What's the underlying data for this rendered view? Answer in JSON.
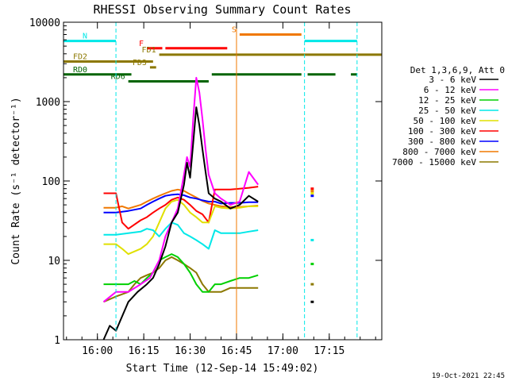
{
  "chart_data": {
    "type": "line",
    "title": "RHESSI Observing Summary Count Rates",
    "xlabel": "Start Time (12-Sep-14 15:49:02)",
    "ylabel": "Count Rate (s⁻¹ detector⁻¹)",
    "yscale": "log",
    "ylim": [
      1,
      10000
    ],
    "xlim": [
      "15:49:02",
      "17:32:00"
    ],
    "x_ticks": [
      "16:00",
      "16:15",
      "16:30",
      "16:45",
      "17:00",
      "17:15"
    ],
    "y_ticks": [
      "1",
      "10",
      "100",
      "1000",
      "10000"
    ],
    "legend_title": "Det 1,3,6,9, Att 0",
    "legend_position": "right",
    "timestamp": "19-Oct-2021 22:45",
    "flags": [
      {
        "label": "N",
        "color": "#00e8e8",
        "y": 5800,
        "segments": [
          [
            "15:49",
            "16:06"
          ],
          [
            "17:07",
            "17:24"
          ]
        ]
      },
      {
        "label": "S",
        "color": "#f07800",
        "y": 7000,
        "segments": [
          [
            "16:46",
            "17:06"
          ]
        ]
      },
      {
        "label": "F",
        "color": "#ff0000",
        "y": 4700,
        "segments": [
          [
            "16:16",
            "16:21"
          ],
          [
            "16:22",
            "16:42"
          ]
        ]
      },
      {
        "label": "FD1",
        "color": "#8c7800",
        "y": 3900,
        "segments": [
          [
            "16:20",
            "17:32"
          ]
        ]
      },
      {
        "label": "FD2",
        "color": "#8c7800",
        "y": 3200,
        "segments": [
          [
            "15:49",
            "16:18"
          ]
        ]
      },
      {
        "label": "FD3",
        "color": "#8c7800",
        "y": 2700,
        "segments": [
          [
            "16:17",
            "16:19"
          ]
        ]
      },
      {
        "label": "RD0",
        "color": "#006400",
        "y": 2200,
        "segments": [
          [
            "15:49",
            "16:11"
          ],
          [
            "16:37",
            "17:06"
          ],
          [
            "17:08",
            "17:17"
          ],
          [
            "17:22",
            "17:24"
          ]
        ]
      },
      {
        "label": "RD6",
        "color": "#006400",
        "y": 1800,
        "segments": [
          [
            "16:10",
            "16:36"
          ]
        ]
      }
    ],
    "markers": [
      {
        "time": "16:06",
        "color": "#00e8e8",
        "style": "dashed"
      },
      {
        "time": "16:45",
        "color": "#f07800",
        "style": "solid"
      },
      {
        "time": "17:07",
        "color": "#00e8e8",
        "style": "dashed"
      },
      {
        "time": "17:24",
        "color": "#00e8e8",
        "style": "dashed"
      }
    ],
    "series": [
      {
        "name": "3 - 6 keV",
        "color": "#000000",
        "points": [
          [
            "16:02",
            1
          ],
          [
            "16:04",
            1.5
          ],
          [
            "16:06",
            1.3
          ],
          [
            "16:10",
            3
          ],
          [
            "16:13",
            4
          ],
          [
            "16:16",
            5
          ],
          [
            "16:18",
            6
          ],
          [
            "16:20",
            9
          ],
          [
            "16:22",
            15
          ],
          [
            "16:24",
            30
          ],
          [
            "16:26",
            40
          ],
          [
            "16:28",
            90
          ],
          [
            "16:29",
            170
          ],
          [
            "16:30",
            110
          ],
          [
            "16:31",
            300
          ],
          [
            "16:32",
            850
          ],
          [
            "16:33",
            500
          ],
          [
            "16:34",
            250
          ],
          [
            "16:35",
            130
          ],
          [
            "16:36",
            70
          ],
          [
            "16:38",
            60
          ],
          [
            "16:40",
            55
          ],
          [
            "16:43",
            45
          ],
          [
            "16:46",
            50
          ],
          [
            "16:49",
            65
          ],
          [
            "16:52",
            55
          ]
        ]
      },
      {
        "name": "6 - 12 keV",
        "color": "#ff00ff",
        "points": [
          [
            "16:02",
            3
          ],
          [
            "16:06",
            4
          ],
          [
            "16:10",
            4
          ],
          [
            "16:14",
            5
          ],
          [
            "16:17",
            6
          ],
          [
            "16:20",
            10
          ],
          [
            "16:22",
            20
          ],
          [
            "16:24",
            30
          ],
          [
            "16:26",
            45
          ],
          [
            "16:28",
            120
          ],
          [
            "16:29",
            200
          ],
          [
            "16:30",
            150
          ],
          [
            "16:31",
            600
          ],
          [
            "16:32",
            2000
          ],
          [
            "16:33",
            1300
          ],
          [
            "16:34",
            600
          ],
          [
            "16:35",
            250
          ],
          [
            "16:36",
            120
          ],
          [
            "16:38",
            70
          ],
          [
            "16:40",
            60
          ],
          [
            "16:43",
            50
          ],
          [
            "16:46",
            55
          ],
          [
            "16:49",
            130
          ],
          [
            "16:52",
            90
          ]
        ]
      },
      {
        "name": "12 - 25 keV",
        "color": "#00d000",
        "points": [
          [
            "16:02",
            5
          ],
          [
            "16:06",
            5
          ],
          [
            "16:10",
            5
          ],
          [
            "16:12",
            5.5
          ],
          [
            "16:14",
            5
          ],
          [
            "16:16",
            6
          ],
          [
            "16:18",
            7
          ],
          [
            "16:20",
            10
          ],
          [
            "16:22",
            11
          ],
          [
            "16:24",
            12
          ],
          [
            "16:26",
            11
          ],
          [
            "16:28",
            9
          ],
          [
            "16:30",
            7
          ],
          [
            "16:32",
            5
          ],
          [
            "16:34",
            4
          ],
          [
            "16:36",
            4
          ],
          [
            "16:38",
            5
          ],
          [
            "16:40",
            5
          ],
          [
            "16:43",
            5.5
          ],
          [
            "16:46",
            6
          ],
          [
            "16:49",
            6
          ],
          [
            "16:52",
            6.5
          ]
        ]
      },
      {
        "name": "25 - 50 keV",
        "color": "#00e8e8",
        "points": [
          [
            "16:02",
            21
          ],
          [
            "16:04",
            21
          ],
          [
            "16:06",
            21
          ],
          [
            "16:10",
            22
          ],
          [
            "16:14",
            23
          ],
          [
            "16:16",
            25
          ],
          [
            "16:18",
            24
          ],
          [
            "16:20",
            20
          ],
          [
            "16:22",
            25
          ],
          [
            "16:24",
            30
          ],
          [
            "16:26",
            28
          ],
          [
            "16:28",
            22
          ],
          [
            "16:30",
            20
          ],
          [
            "16:32",
            18
          ],
          [
            "16:34",
            16
          ],
          [
            "16:36",
            14
          ],
          [
            "16:38",
            24
          ],
          [
            "16:40",
            22
          ],
          [
            "16:43",
            22
          ],
          [
            "16:46",
            22
          ],
          [
            "16:49",
            23
          ],
          [
            "16:52",
            24
          ]
        ]
      },
      {
        "name": "50 - 100 keV",
        "color": "#e0e000",
        "points": [
          [
            "16:02",
            16
          ],
          [
            "16:06",
            16
          ],
          [
            "16:08",
            14
          ],
          [
            "16:10",
            12
          ],
          [
            "16:14",
            14
          ],
          [
            "16:16",
            16
          ],
          [
            "16:18",
            20
          ],
          [
            "16:20",
            30
          ],
          [
            "16:22",
            45
          ],
          [
            "16:24",
            55
          ],
          [
            "16:26",
            58
          ],
          [
            "16:28",
            50
          ],
          [
            "16:30",
            40
          ],
          [
            "16:32",
            35
          ],
          [
            "16:34",
            30
          ],
          [
            "16:36",
            30
          ],
          [
            "16:38",
            48
          ],
          [
            "16:40",
            46
          ],
          [
            "16:43",
            45
          ],
          [
            "16:46",
            46
          ],
          [
            "16:49",
            48
          ],
          [
            "16:52",
            48
          ]
        ]
      },
      {
        "name": "100 - 300 keV",
        "color": "#ff0000",
        "points": [
          [
            "16:02",
            70
          ],
          [
            "16:06",
            70
          ],
          [
            "16:08",
            30
          ],
          [
            "16:10",
            25
          ],
          [
            "16:14",
            32
          ],
          [
            "16:16",
            35
          ],
          [
            "16:18",
            40
          ],
          [
            "16:20",
            45
          ],
          [
            "16:22",
            50
          ],
          [
            "16:24",
            58
          ],
          [
            "16:26",
            62
          ],
          [
            "16:28",
            58
          ],
          [
            "16:30",
            50
          ],
          [
            "16:32",
            42
          ],
          [
            "16:34",
            38
          ],
          [
            "16:36",
            30
          ],
          [
            "16:38",
            78
          ],
          [
            "16:40",
            78
          ],
          [
            "16:43",
            78
          ],
          [
            "16:46",
            80
          ],
          [
            "16:49",
            82
          ],
          [
            "16:52",
            85
          ]
        ]
      },
      {
        "name": "300 - 800 keV",
        "color": "#0000ff",
        "points": [
          [
            "16:02",
            40
          ],
          [
            "16:06",
            40
          ],
          [
            "16:10",
            42
          ],
          [
            "16:14",
            45
          ],
          [
            "16:16",
            50
          ],
          [
            "16:18",
            55
          ],
          [
            "16:20",
            60
          ],
          [
            "16:22",
            65
          ],
          [
            "16:24",
            67
          ],
          [
            "16:26",
            68
          ],
          [
            "16:28",
            66
          ],
          [
            "16:30",
            62
          ],
          [
            "16:32",
            60
          ],
          [
            "16:34",
            57
          ],
          [
            "16:36",
            55
          ],
          [
            "16:38",
            55
          ],
          [
            "16:40",
            52
          ],
          [
            "16:43",
            53
          ],
          [
            "16:46",
            53
          ],
          [
            "16:49",
            54
          ],
          [
            "16:52",
            54
          ]
        ]
      },
      {
        "name": "800 - 7000 keV",
        "color": "#f07800",
        "points": [
          [
            "16:02",
            46
          ],
          [
            "16:06",
            46
          ],
          [
            "16:08",
            48
          ],
          [
            "16:10",
            45
          ],
          [
            "16:14",
            50
          ],
          [
            "16:16",
            55
          ],
          [
            "16:18",
            60
          ],
          [
            "16:20",
            65
          ],
          [
            "16:22",
            70
          ],
          [
            "16:24",
            75
          ],
          [
            "16:26",
            78
          ],
          [
            "16:28",
            75
          ],
          [
            "16:30",
            68
          ],
          [
            "16:32",
            62
          ],
          [
            "16:34",
            56
          ],
          [
            "16:36",
            52
          ],
          [
            "16:38",
            50
          ],
          [
            "16:40",
            48
          ],
          [
            "16:43",
            47
          ],
          [
            "16:46",
            47
          ],
          [
            "16:49",
            48
          ],
          [
            "16:52",
            49
          ]
        ]
      },
      {
        "name": "7000 - 15000 keV",
        "color": "#8c7800",
        "points": [
          [
            "16:02",
            3
          ],
          [
            "16:06",
            3.5
          ],
          [
            "16:10",
            4
          ],
          [
            "16:12",
            5
          ],
          [
            "16:14",
            6
          ],
          [
            "16:16",
            6.5
          ],
          [
            "16:18",
            7
          ],
          [
            "16:20",
            8
          ],
          [
            "16:22",
            10
          ],
          [
            "16:24",
            11
          ],
          [
            "16:26",
            10
          ],
          [
            "16:28",
            9
          ],
          [
            "16:30",
            8
          ],
          [
            "16:32",
            7
          ],
          [
            "16:34",
            5
          ],
          [
            "16:36",
            4
          ],
          [
            "16:38",
            4
          ],
          [
            "16:40",
            4
          ],
          [
            "16:43",
            4.5
          ],
          [
            "16:46",
            4.5
          ],
          [
            "16:49",
            4.5
          ],
          [
            "16:52",
            4.5
          ]
        ]
      }
    ],
    "late_segment": {
      "time_range": [
        "17:09",
        "17:10"
      ],
      "values": [
        {
          "name": "100 - 300 keV",
          "color": "#ff0000",
          "y": 80
        },
        {
          "name": "800 - 7000 keV",
          "color": "#f07800",
          "y": 75
        },
        {
          "name": "300 - 800 keV",
          "color": "#0000ff",
          "y": 65
        },
        {
          "name": "50 - 100 keV",
          "color": "#e0e000",
          "y": 70
        },
        {
          "name": "25 - 50 keV",
          "color": "#00e8e8",
          "y": 18
        },
        {
          "name": "12 - 25 keV",
          "color": "#00d000",
          "y": 9
        },
        {
          "name": "7000 - 15000 keV",
          "color": "#8c7800",
          "y": 5
        },
        {
          "name": "3 - 6 keV",
          "color": "#000000",
          "y": 3
        }
      ]
    }
  }
}
